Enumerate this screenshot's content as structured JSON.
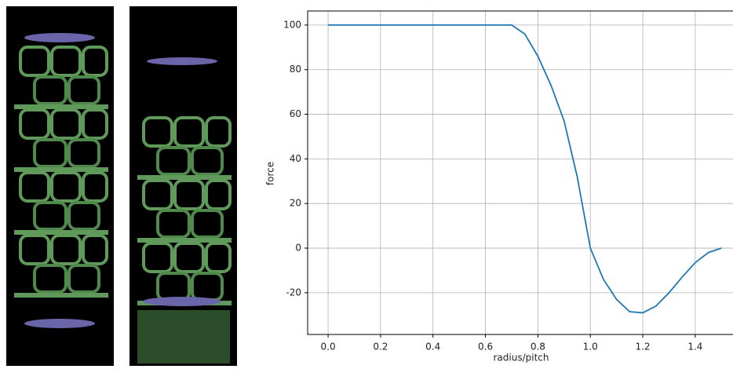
{
  "chart_data": {
    "type": "line",
    "xlabel": "radius/pitch",
    "ylabel": "force",
    "x": [
      0,
      0.05,
      0.1,
      0.15,
      0.2,
      0.25,
      0.3,
      0.35,
      0.4,
      0.45,
      0.5,
      0.55,
      0.6,
      0.65,
      0.7,
      0.75,
      0.8,
      0.85,
      0.9,
      0.95,
      1.0,
      1.05,
      1.1,
      1.15,
      1.2,
      1.25,
      1.3,
      1.35,
      1.4,
      1.45,
      1.5
    ],
    "series": [
      {
        "color": "#1f77b4",
        "values": [
          100,
          100,
          100,
          100,
          100,
          100,
          100,
          100,
          100,
          100,
          100,
          100,
          100,
          100,
          100,
          96,
          86,
          73,
          57,
          32,
          0,
          -14,
          -23,
          -28.5,
          -29,
          -26,
          -20,
          -13,
          -6.5,
          -2,
          0
        ]
      }
    ],
    "xlim": [
      -0.078,
      1.553
    ],
    "ylim": [
      -38.7,
      106.3
    ],
    "xticks": [
      {
        "value": 0,
        "label": "0.0"
      },
      {
        "value": 0.2,
        "label": "0.2"
      },
      {
        "value": 0.4,
        "label": "0.4"
      },
      {
        "value": 0.6,
        "label": "0.6"
      },
      {
        "value": 0.8,
        "label": "0.8"
      },
      {
        "value": 1.0,
        "label": "1.0"
      },
      {
        "value": 1.2,
        "label": "1.2"
      },
      {
        "value": 1.4,
        "label": "1.4"
      }
    ],
    "yticks": [
      -20,
      0,
      20,
      40,
      60,
      80,
      100
    ],
    "grid": true
  }
}
